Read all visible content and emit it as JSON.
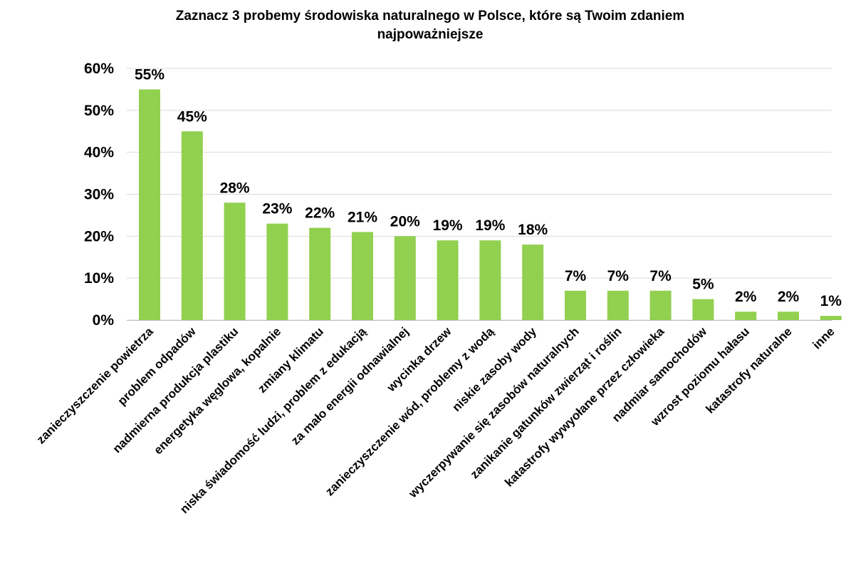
{
  "chart_data": {
    "type": "bar",
    "title_line1": "Zaznacz 3 probemy środowiska naturalnego w Polsce, które są Twoim zdaniem",
    "title_line2": "najpoważniejsze",
    "xlabel": "",
    "ylabel": "",
    "ylim": [
      0,
      60
    ],
    "y_ticks": [
      "0%",
      "10%",
      "20%",
      "30%",
      "40%",
      "50%",
      "60%"
    ],
    "grid": true,
    "categories": [
      "zanieczyszczenie powietrza",
      "problem odpadów",
      "nadmierna produkcja plastiku",
      "energetyka węglowa, kopalnie",
      "zmiany klimatu",
      "niska świadomość ludzi, problem z edukacją",
      "za mało energii odnawialnej",
      "wycinka drzew",
      "zanieczyszczenie wód, problemy z wodą",
      "niskie zasoby wody",
      "wyczerpywanie się zasobów naturalnych",
      "zanikanie gatunków zwierząt i roślin",
      "katastrofy wywyołane przez człowieka",
      "nadmiar samochodów",
      "wzrost poziomu hałasu",
      "katastrofy naturalne",
      "inne"
    ],
    "values": [
      55,
      45,
      28,
      23,
      22,
      21,
      20,
      19,
      19,
      18,
      7,
      7,
      7,
      5,
      2,
      2,
      1
    ],
    "data_labels": [
      "55%",
      "45%",
      "28%",
      "23%",
      "22%",
      "21%",
      "20%",
      "19%",
      "19%",
      "18%",
      "7%",
      "7%",
      "7%",
      "5%",
      "2%",
      "2%",
      "1%"
    ],
    "bar_color": "#92d050",
    "grid_color": "#d9d9d9"
  }
}
